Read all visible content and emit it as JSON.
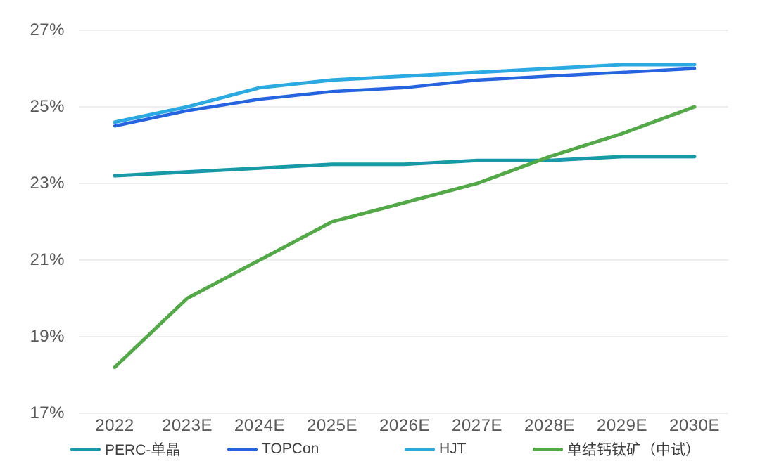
{
  "chart_data": {
    "type": "line",
    "title": "",
    "categories": [
      "2022",
      "2023E",
      "2024E",
      "2025E",
      "2026E",
      "2027E",
      "2028E",
      "2029E",
      "2030E"
    ],
    "series": [
      {
        "name": "PERC-单晶",
        "color": "#1799A6",
        "values": [
          23.2,
          23.3,
          23.4,
          23.5,
          23.5,
          23.6,
          23.6,
          23.7,
          23.7
        ]
      },
      {
        "name": "TOPCon",
        "color": "#2563DF",
        "values": [
          24.5,
          24.9,
          25.2,
          25.4,
          25.5,
          25.7,
          25.8,
          25.9,
          26.0
        ]
      },
      {
        "name": "HJT",
        "color": "#2BA9E1",
        "values": [
          24.6,
          25.0,
          25.5,
          25.7,
          25.8,
          25.9,
          26.0,
          26.1,
          26.1
        ]
      },
      {
        "name": "单结钙钛矿（中试）",
        "color": "#53A947",
        "values": [
          18.2,
          20.0,
          21.0,
          22.0,
          22.5,
          23.0,
          23.7,
          24.3,
          25.0
        ]
      }
    ],
    "ylim": [
      17,
      27
    ],
    "yticks": [
      27,
      25,
      23,
      21,
      19,
      17
    ],
    "y_tick_labels": [
      "27%",
      "25%",
      "23%",
      "21%",
      "19%",
      "17%"
    ],
    "grid": true,
    "gridline_color": "#e4e4e4",
    "axis_label_color": "#595959",
    "legend_text_color": "#3d3d3d",
    "legend_position": "bottom"
  },
  "legend": {
    "items": [
      {
        "label": "PERC-单晶"
      },
      {
        "label": "TOPCon"
      },
      {
        "label": "HJT"
      },
      {
        "label": "单结钙钛矿（中试）"
      }
    ]
  }
}
